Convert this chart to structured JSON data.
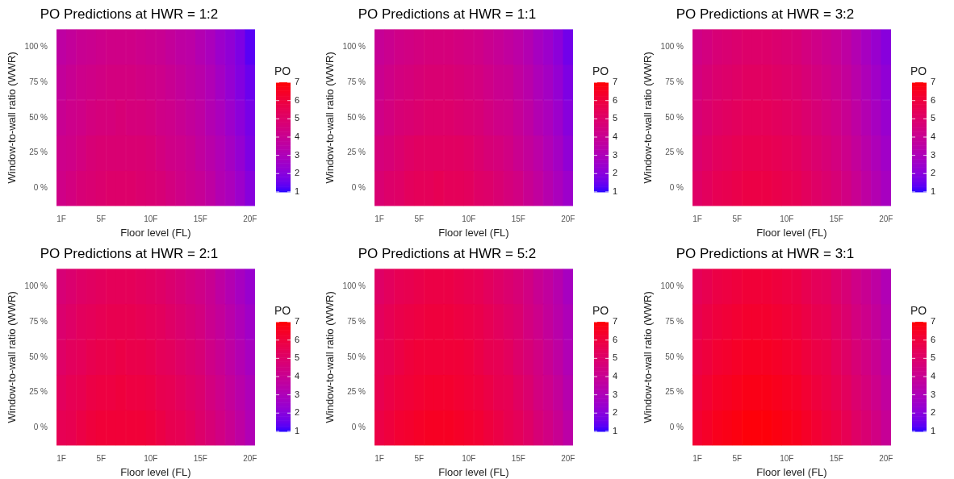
{
  "chart_data": [
    {
      "type": "heatmap",
      "title": "PO Predictions at HWR = 1:2",
      "xlabel": "Floor level (FL)",
      "ylabel": "Window-to-wall ratio (WWR)",
      "clabel": "PO",
      "clim": [
        1,
        7
      ],
      "cticks": [
        1,
        2,
        3,
        4,
        5,
        6,
        7
      ],
      "categories": [
        "1F",
        null,
        null,
        null,
        "5F",
        null,
        null,
        null,
        null,
        "10F",
        null,
        null,
        null,
        null,
        "15F",
        null,
        null,
        null,
        null,
        "20F"
      ],
      "y_categories": [
        "100 %",
        "75 %",
        "50 %",
        "25 %",
        "0 %"
      ],
      "cells": [
        [
          3.6,
          3.8,
          4.0,
          4.1,
          4.2,
          4.3,
          4.3,
          4.3,
          4.2,
          4.1,
          4.0,
          3.8,
          3.6,
          3.5,
          3.2,
          2.9,
          2.5,
          2.2,
          1.8,
          1.3
        ],
        [
          3.8,
          4.0,
          4.2,
          4.3,
          4.4,
          4.5,
          4.5,
          4.5,
          4.4,
          4.3,
          4.2,
          4.0,
          3.8,
          3.6,
          3.4,
          3.1,
          2.7,
          2.3,
          1.9,
          1.5
        ],
        [
          4.0,
          4.2,
          4.3,
          4.5,
          4.6,
          4.6,
          4.7,
          4.6,
          4.6,
          4.5,
          4.3,
          4.2,
          4.0,
          3.8,
          3.6,
          3.2,
          2.9,
          2.5,
          2.1,
          1.7
        ],
        [
          4.2,
          4.3,
          4.5,
          4.7,
          4.8,
          4.8,
          4.8,
          4.8,
          4.8,
          4.7,
          4.5,
          4.3,
          4.2,
          4.0,
          3.7,
          3.4,
          3.1,
          2.7,
          2.3,
          1.8
        ],
        [
          4.3,
          4.5,
          4.7,
          4.8,
          4.9,
          5.0,
          5.0,
          5.0,
          4.9,
          4.8,
          4.7,
          4.5,
          4.3,
          4.1,
          3.9,
          3.6,
          3.2,
          2.9,
          2.5,
          2.0
        ]
      ]
    },
    {
      "type": "heatmap",
      "title": "PO Predictions at HWR = 1:1",
      "xlabel": "Floor level (FL)",
      "ylabel": "Window-to-wall ratio (WWR)",
      "clabel": "PO",
      "clim": [
        1,
        7
      ],
      "cticks": [
        1,
        2,
        3,
        4,
        5,
        6,
        7
      ],
      "categories": [
        "1F",
        null,
        null,
        null,
        "5F",
        null,
        null,
        null,
        null,
        "10F",
        null,
        null,
        null,
        null,
        "15F",
        null,
        null,
        null,
        null,
        "20F"
      ],
      "y_categories": [
        "100 %",
        "75 %",
        "50 %",
        "25 %",
        "0 %"
      ],
      "cells": [
        [
          3.9,
          4.1,
          4.3,
          4.4,
          4.5,
          4.6,
          4.6,
          4.6,
          4.5,
          4.4,
          4.3,
          4.1,
          3.9,
          3.7,
          3.5,
          3.2,
          2.8,
          2.5,
          2.1,
          1.6
        ],
        [
          4.1,
          4.3,
          4.5,
          4.6,
          4.7,
          4.8,
          4.8,
          4.8,
          4.7,
          4.6,
          4.5,
          4.3,
          4.1,
          4.0,
          3.7,
          3.4,
          3.0,
          2.7,
          2.3,
          1.8
        ],
        [
          4.3,
          4.5,
          4.7,
          4.8,
          4.9,
          5.0,
          5.0,
          5.0,
          4.9,
          4.8,
          4.7,
          4.5,
          4.3,
          4.2,
          3.9,
          3.6,
          3.2,
          2.9,
          2.5,
          2.0
        ],
        [
          4.6,
          4.7,
          4.9,
          5.1,
          5.2,
          5.2,
          5.2,
          5.2,
          5.2,
          5.1,
          4.9,
          4.7,
          4.6,
          4.4,
          4.1,
          3.8,
          3.5,
          3.1,
          2.7,
          2.2
        ],
        [
          4.8,
          5.0,
          5.1,
          5.3,
          5.4,
          5.4,
          5.5,
          5.4,
          5.4,
          5.3,
          5.1,
          5.0,
          4.8,
          4.6,
          4.4,
          4.0,
          3.7,
          3.3,
          2.9,
          2.5
        ]
      ]
    },
    {
      "type": "heatmap",
      "title": "PO Predictions at HWR = 3:2",
      "xlabel": "Floor level (FL)",
      "ylabel": "Window-to-wall ratio (WWR)",
      "clabel": "PO",
      "clim": [
        1,
        7
      ],
      "cticks": [
        1,
        2,
        3,
        4,
        5,
        6,
        7
      ],
      "categories": [
        "1F",
        null,
        null,
        null,
        "5F",
        null,
        null,
        null,
        null,
        "10F",
        null,
        null,
        null,
        null,
        "15F",
        null,
        null,
        null,
        null,
        "20F"
      ],
      "y_categories": [
        "100 %",
        "75 %",
        "50 %",
        "25 %",
        "0 %"
      ],
      "cells": [
        [
          4.3,
          4.5,
          4.7,
          4.8,
          4.9,
          5.0,
          5.0,
          5.0,
          4.9,
          4.8,
          4.7,
          4.5,
          4.3,
          4.1,
          3.9,
          3.6,
          3.2,
          2.8,
          2.4,
          2.0
        ],
        [
          4.5,
          4.7,
          4.9,
          5.0,
          5.1,
          5.2,
          5.2,
          5.2,
          5.1,
          5.0,
          4.9,
          4.7,
          4.5,
          4.3,
          4.1,
          3.8,
          3.4,
          3.0,
          2.6,
          2.2
        ],
        [
          4.7,
          4.9,
          5.1,
          5.2,
          5.3,
          5.4,
          5.4,
          5.4,
          5.3,
          5.2,
          5.1,
          4.9,
          4.7,
          4.5,
          4.3,
          4.0,
          3.6,
          3.2,
          2.8,
          2.4
        ],
        [
          4.9,
          5.1,
          5.3,
          5.4,
          5.5,
          5.6,
          5.6,
          5.6,
          5.5,
          5.4,
          5.3,
          5.1,
          4.9,
          4.7,
          4.5,
          4.2,
          3.8,
          3.4,
          3.0,
          2.6
        ],
        [
          5.1,
          5.3,
          5.5,
          5.6,
          5.7,
          5.8,
          5.8,
          5.8,
          5.7,
          5.6,
          5.5,
          5.3,
          5.1,
          4.9,
          4.7,
          4.4,
          4.0,
          3.6,
          3.2,
          2.8
        ]
      ]
    },
    {
      "type": "heatmap",
      "title": "PO Predictions at HWR = 2:1",
      "xlabel": "Floor level (FL)",
      "ylabel": "Window-to-wall ratio (WWR)",
      "clabel": "PO",
      "clim": [
        1,
        7
      ],
      "cticks": [
        1,
        2,
        3,
        4,
        5,
        6,
        7
      ],
      "categories": [
        "1F",
        null,
        null,
        null,
        "5F",
        null,
        null,
        null,
        null,
        "10F",
        null,
        null,
        null,
        null,
        "15F",
        null,
        null,
        null,
        null,
        "20F"
      ],
      "y_categories": [
        "100 %",
        "75 %",
        "50 %",
        "25 %",
        "0 %"
      ],
      "cells": [
        [
          4.7,
          4.9,
          5.1,
          5.2,
          5.3,
          5.4,
          5.4,
          5.4,
          5.3,
          5.2,
          5.1,
          4.9,
          4.7,
          4.5,
          4.3,
          4.0,
          3.6,
          3.2,
          2.8,
          2.4
        ],
        [
          4.9,
          5.1,
          5.3,
          5.4,
          5.5,
          5.6,
          5.6,
          5.6,
          5.5,
          5.4,
          5.3,
          5.1,
          4.9,
          4.7,
          4.5,
          4.1,
          3.8,
          3.4,
          3.0,
          2.6
        ],
        [
          5.1,
          5.3,
          5.4,
          5.6,
          5.7,
          5.7,
          5.8,
          5.7,
          5.7,
          5.6,
          5.4,
          5.3,
          5.1,
          4.9,
          4.7,
          4.3,
          4.0,
          3.6,
          3.2,
          2.8
        ],
        [
          5.3,
          5.5,
          5.6,
          5.8,
          5.9,
          5.9,
          6.0,
          5.9,
          5.9,
          5.8,
          5.6,
          5.5,
          5.3,
          5.1,
          4.9,
          4.5,
          4.2,
          3.8,
          3.4,
          3.0
        ],
        [
          5.5,
          5.6,
          5.8,
          6.0,
          6.1,
          6.1,
          6.1,
          6.1,
          6.1,
          6.0,
          5.8,
          5.6,
          5.5,
          5.3,
          5.0,
          4.7,
          4.4,
          4.0,
          3.6,
          3.1
        ]
      ]
    },
    {
      "type": "heatmap",
      "title": "PO Predictions at HWR = 5:2",
      "xlabel": "Floor level (FL)",
      "ylabel": "Window-to-wall ratio (WWR)",
      "clabel": "PO",
      "clim": [
        1,
        7
      ],
      "cticks": [
        1,
        2,
        3,
        4,
        5,
        6,
        7
      ],
      "categories": [
        "1F",
        null,
        null,
        null,
        "5F",
        null,
        null,
        null,
        null,
        "10F",
        null,
        null,
        null,
        null,
        "15F",
        null,
        null,
        null,
        null,
        "20F"
      ],
      "y_categories": [
        "100 %",
        "75 %",
        "50 %",
        "25 %",
        "0 %"
      ],
      "cells": [
        [
          5.1,
          5.3,
          5.5,
          5.6,
          5.7,
          5.8,
          5.8,
          5.8,
          5.7,
          5.6,
          5.5,
          5.3,
          5.1,
          4.9,
          4.7,
          4.4,
          4.0,
          3.7,
          3.3,
          2.8
        ],
        [
          5.3,
          5.5,
          5.7,
          5.8,
          5.9,
          6.0,
          6.0,
          6.0,
          5.9,
          5.8,
          5.7,
          5.5,
          5.3,
          5.1,
          4.9,
          4.5,
          4.2,
          3.8,
          3.4,
          3.0
        ],
        [
          5.5,
          5.6,
          5.8,
          6.0,
          6.1,
          6.1,
          6.1,
          6.1,
          6.1,
          6.0,
          5.8,
          5.6,
          5.5,
          5.3,
          5.0,
          4.7,
          4.4,
          4.0,
          3.6,
          3.1
        ],
        [
          5.6,
          5.8,
          6.0,
          6.1,
          6.2,
          6.3,
          6.3,
          6.3,
          6.2,
          6.1,
          6.0,
          5.8,
          5.6,
          5.5,
          5.2,
          4.9,
          4.5,
          4.2,
          3.8,
          3.3
        ],
        [
          5.8,
          6.0,
          6.2,
          6.3,
          6.4,
          6.5,
          6.5,
          6.5,
          6.4,
          6.3,
          6.2,
          6.0,
          5.8,
          5.6,
          5.4,
          5.1,
          4.7,
          4.4,
          4.0,
          3.5
        ]
      ]
    },
    {
      "type": "heatmap",
      "title": "PO Predictions at HWR = 3:1",
      "xlabel": "Floor level (FL)",
      "ylabel": "Window-to-wall ratio (WWR)",
      "clabel": "PO",
      "clim": [
        1,
        7
      ],
      "cticks": [
        1,
        2,
        3,
        4,
        5,
        6,
        7
      ],
      "categories": [
        "1F",
        null,
        null,
        null,
        "5F",
        null,
        null,
        null,
        null,
        "10F",
        null,
        null,
        null,
        null,
        "15F",
        null,
        null,
        null,
        null,
        "20F"
      ],
      "y_categories": [
        "100 %",
        "75 %",
        "50 %",
        "25 %",
        "0 %"
      ],
      "cells": [
        [
          5.4,
          5.6,
          5.8,
          5.9,
          6.0,
          6.1,
          6.1,
          6.1,
          6.0,
          5.9,
          5.8,
          5.6,
          5.4,
          5.3,
          5.0,
          4.7,
          4.3,
          4.0,
          3.6,
          3.1
        ],
        [
          5.6,
          5.8,
          6.0,
          6.1,
          6.2,
          6.3,
          6.3,
          6.3,
          6.2,
          6.1,
          6.0,
          5.8,
          5.6,
          5.5,
          5.2,
          4.9,
          4.5,
          4.2,
          3.8,
          3.3
        ],
        [
          5.8,
          6.0,
          6.2,
          6.3,
          6.4,
          6.5,
          6.5,
          6.5,
          6.4,
          6.3,
          6.2,
          6.0,
          5.8,
          5.7,
          5.4,
          5.1,
          4.7,
          4.4,
          4.0,
          3.5
        ],
        [
          6.0,
          6.2,
          6.4,
          6.5,
          6.6,
          6.7,
          6.7,
          6.7,
          6.6,
          6.5,
          6.4,
          6.2,
          6.0,
          5.8,
          5.6,
          5.3,
          4.9,
          4.6,
          4.2,
          3.7
        ],
        [
          6.2,
          6.4,
          6.6,
          6.7,
          6.8,
          6.9,
          6.9,
          6.9,
          6.8,
          6.7,
          6.6,
          6.4,
          6.2,
          6.0,
          5.8,
          5.5,
          5.1,
          4.8,
          4.4,
          3.9
        ]
      ]
    }
  ]
}
